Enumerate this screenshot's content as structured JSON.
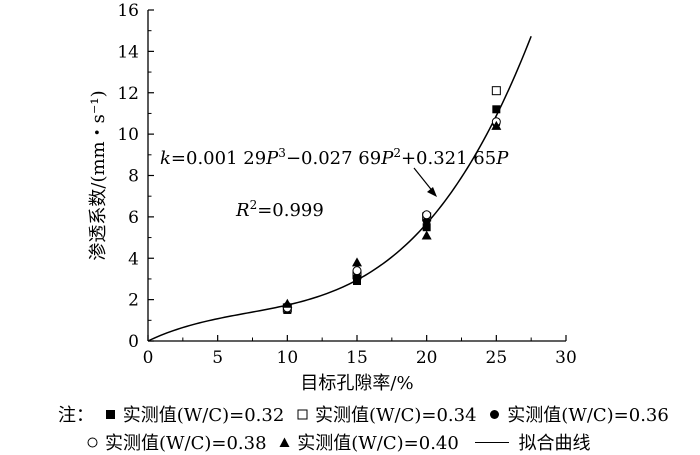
{
  "chart_data": {
    "type": "scatter",
    "xlabel": "目标孔隙率/%",
    "ylabel": "渗透系数/(mm・s⁻¹)",
    "xlim": [
      0,
      30
    ],
    "ylim": [
      0,
      16
    ],
    "x_ticks": [
      "0",
      "5",
      "10",
      "15",
      "20",
      "25",
      "30"
    ],
    "y_ticks": [
      "0",
      "2",
      "4",
      "6",
      "8",
      "10",
      "12",
      "14",
      "16"
    ],
    "grid": false,
    "series": [
      {
        "name": "实测值(W/C)=0.32",
        "marker": "filled-square",
        "points": [
          [
            10,
            1.5
          ],
          [
            15,
            2.9
          ],
          [
            20,
            5.5
          ],
          [
            25,
            11.2
          ]
        ]
      },
      {
        "name": "实测值(W/C)=0.34",
        "marker": "open-square",
        "points": [
          [
            10,
            1.6
          ],
          [
            15,
            3.2
          ],
          [
            20,
            6.0
          ],
          [
            25,
            12.1
          ]
        ]
      },
      {
        "name": "实测值(W/C)=0.36",
        "marker": "filled-circle",
        "points": [
          [
            10,
            1.7
          ],
          [
            15,
            3.1
          ],
          [
            20,
            5.8
          ],
          [
            25,
            10.5
          ]
        ]
      },
      {
        "name": "实测值(W/C)=0.38",
        "marker": "open-circle",
        "points": [
          [
            10,
            1.6
          ],
          [
            15,
            3.4
          ],
          [
            20,
            6.1
          ],
          [
            25,
            10.6
          ]
        ]
      },
      {
        "name": "实测值(W/C)=0.40",
        "marker": "filled-triangle",
        "points": [
          [
            10,
            1.8
          ],
          [
            15,
            3.8
          ],
          [
            20,
            5.1
          ],
          [
            25,
            10.4
          ]
        ]
      }
    ],
    "fit_curve": {
      "name": "拟合曲线",
      "coefficients": {
        "a3": 0.00129,
        "a2": -0.02769,
        "a1": 0.32165
      },
      "x_range": [
        0,
        27.5
      ]
    },
    "annotations": {
      "equation": {
        "k": "k",
        "eq1": "=0.001 29",
        "P1": "P",
        "sup1": "3",
        "eq2": "−0.027 69",
        "P2": "P",
        "sup2": "2",
        "eq3": "+0.321 65",
        "P3": "P"
      },
      "r2": {
        "R": "R",
        "sup": "2",
        "val": "=0.999"
      }
    },
    "legend": {
      "placement": "bottom",
      "prefix": "注："
    }
  }
}
